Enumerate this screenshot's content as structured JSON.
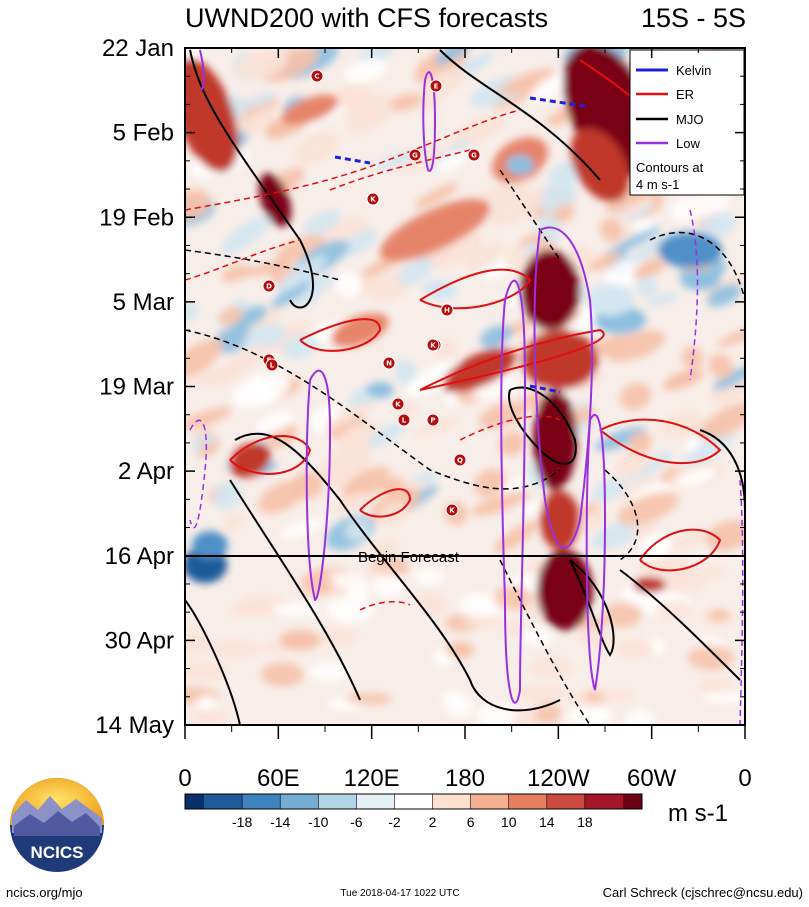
{
  "chart_data": {
    "type": "heatmap",
    "title": "UWND200 with CFS forecasts",
    "region": "15S - 5S",
    "y_axis_dates": [
      "22 Jan",
      "5 Feb",
      "19 Feb",
      "5 Mar",
      "19 Mar",
      "2 Apr",
      "16 Apr",
      "30 Apr",
      "14 May"
    ],
    "x_axis_labels": [
      "0",
      "60E",
      "120E",
      "180",
      "120W",
      "60W",
      "0"
    ],
    "x_range_deg_east": [
      0,
      360
    ],
    "forecast_start": "16 Apr",
    "forecast_label": "Begin Forecast",
    "colorbar": {
      "levels": [
        -18,
        -14,
        -10,
        -6,
        -2,
        2,
        6,
        10,
        14,
        18
      ],
      "colors": [
        "#08306b",
        "#1f5a9a",
        "#3d83bf",
        "#74acd4",
        "#b2d4e7",
        "#e4eff6",
        "#ffffff",
        "#fde0cf",
        "#f5b091",
        "#e57f5f",
        "#cb4b40",
        "#a4172b",
        "#6c0016"
      ],
      "units": "m s-1"
    },
    "legend": {
      "entries": [
        {
          "name": "Kelvin",
          "color": "#1f1fe0"
        },
        {
          "name": "ER",
          "color": "#e01010"
        },
        {
          "name": "MJO",
          "color": "#000000"
        },
        {
          "name": "Low",
          "color": "#9b30e0"
        }
      ],
      "note": [
        "Contours at",
        "4 m s-1"
      ],
      "position": "top-right"
    },
    "cyclone_markers": [
      "C",
      "E",
      "G",
      "G",
      "K",
      "D",
      "E",
      "L",
      "N",
      "H",
      "K",
      "L",
      "P",
      "Q",
      "K",
      "L",
      "K"
    ]
  },
  "logo": {
    "text": "NCICS"
  },
  "footer": {
    "left": "ncics.org/mjo",
    "center": "Tue 2018-04-17 1022 UTC",
    "right": "Carl Schreck (cjschrec@ncsu.edu)"
  }
}
